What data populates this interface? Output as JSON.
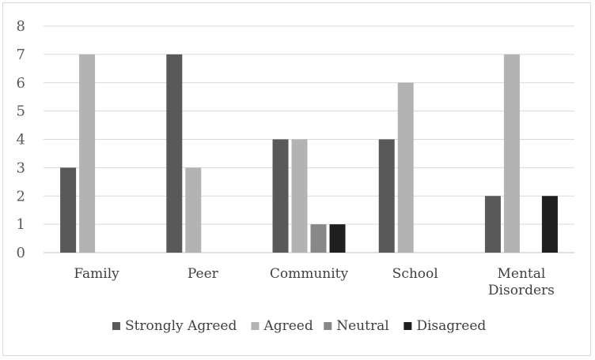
{
  "chart_data": {
    "type": "bar",
    "categories": [
      "Family",
      "Peer",
      "Community",
      "School",
      "Mental Disorders"
    ],
    "series": [
      {
        "name": "Strongly Agreed",
        "color": "#595959",
        "values": [
          3,
          7,
          4,
          4,
          2
        ]
      },
      {
        "name": "Agreed",
        "color": "#b3b3b3",
        "values": [
          7,
          3,
          4,
          6,
          7
        ]
      },
      {
        "name": "Neutral",
        "color": "#888888",
        "values": [
          0,
          0,
          1,
          0,
          0
        ]
      },
      {
        "name": "Disagreed",
        "color": "#1f1f1f",
        "values": [
          0,
          0,
          1,
          0,
          2
        ]
      }
    ],
    "ylim": [
      0,
      8
    ],
    "yticks": [
      0,
      1,
      2,
      3,
      4,
      5,
      6,
      7,
      8
    ],
    "grid": true,
    "legend": "bottom",
    "title": "",
    "xlabel": "",
    "ylabel": ""
  }
}
